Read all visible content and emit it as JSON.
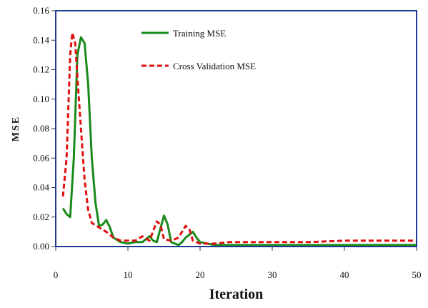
{
  "chart_data": {
    "type": "line",
    "title": "",
    "xlabel": "Iteration",
    "ylabel": "MSE",
    "xlim": [
      0,
      50
    ],
    "ylim": [
      0,
      0.16
    ],
    "x_ticks": [
      "0",
      "10",
      "20",
      "30",
      "40",
      "50"
    ],
    "y_ticks": [
      "0.00",
      "0.02",
      "0.04",
      "0.06",
      "0.08",
      "0.10",
      "0.12",
      "0.14",
      "0.16"
    ],
    "grid": false,
    "legend_position": "top-center",
    "series": [
      {
        "name": "Training MSE",
        "color": "#1a8a1a",
        "style": "solid",
        "points": [
          [
            1,
            0.026
          ],
          [
            1.5,
            0.022
          ],
          [
            2,
            0.02
          ],
          [
            2.5,
            0.06
          ],
          [
            3,
            0.13
          ],
          [
            3.5,
            0.142
          ],
          [
            4,
            0.138
          ],
          [
            4.5,
            0.11
          ],
          [
            5,
            0.06
          ],
          [
            5.5,
            0.03
          ],
          [
            6,
            0.014
          ],
          [
            6.5,
            0.015
          ],
          [
            7,
            0.018
          ],
          [
            7.5,
            0.013
          ],
          [
            8,
            0.006
          ],
          [
            9,
            0.003
          ],
          [
            10,
            0.002
          ],
          [
            11,
            0.003
          ],
          [
            12,
            0.003
          ],
          [
            13,
            0.007
          ],
          [
            13.5,
            0.004
          ],
          [
            14,
            0.003
          ],
          [
            14.5,
            0.012
          ],
          [
            15,
            0.021
          ],
          [
            15.5,
            0.015
          ],
          [
            16,
            0.003
          ],
          [
            17,
            0.001
          ],
          [
            17.5,
            0.003
          ],
          [
            18,
            0.006
          ],
          [
            19,
            0.01
          ],
          [
            19.5,
            0.006
          ],
          [
            20,
            0.003
          ],
          [
            21,
            0.002
          ],
          [
            22,
            0.001
          ],
          [
            25,
            0.001
          ],
          [
            30,
            0.001
          ],
          [
            40,
            0.001
          ],
          [
            50,
            0.001
          ]
        ]
      },
      {
        "name": "Cross Validation MSE",
        "color": "#e01010",
        "style": "dashed",
        "points": [
          [
            1,
            0.034
          ],
          [
            1.5,
            0.06
          ],
          [
            2,
            0.13
          ],
          [
            2.3,
            0.145
          ],
          [
            2.7,
            0.138
          ],
          [
            3,
            0.115
          ],
          [
            3.5,
            0.08
          ],
          [
            4,
            0.045
          ],
          [
            4.5,
            0.025
          ],
          [
            5,
            0.016
          ],
          [
            6,
            0.013
          ],
          [
            7,
            0.01
          ],
          [
            8,
            0.006
          ],
          [
            9,
            0.004
          ],
          [
            10,
            0.004
          ],
          [
            11,
            0.004
          ],
          [
            12,
            0.007
          ],
          [
            13,
            0.004
          ],
          [
            14,
            0.017
          ],
          [
            14.5,
            0.015
          ],
          [
            15,
            0.005
          ],
          [
            16,
            0.004
          ],
          [
            17,
            0.006
          ],
          [
            18,
            0.014
          ],
          [
            18.5,
            0.012
          ],
          [
            19,
            0.004
          ],
          [
            20,
            0.002
          ],
          [
            22,
            0.002
          ],
          [
            24,
            0.003
          ],
          [
            30,
            0.003
          ],
          [
            35,
            0.003
          ],
          [
            40,
            0.004
          ],
          [
            45,
            0.004
          ],
          [
            50,
            0.004
          ]
        ]
      }
    ]
  }
}
